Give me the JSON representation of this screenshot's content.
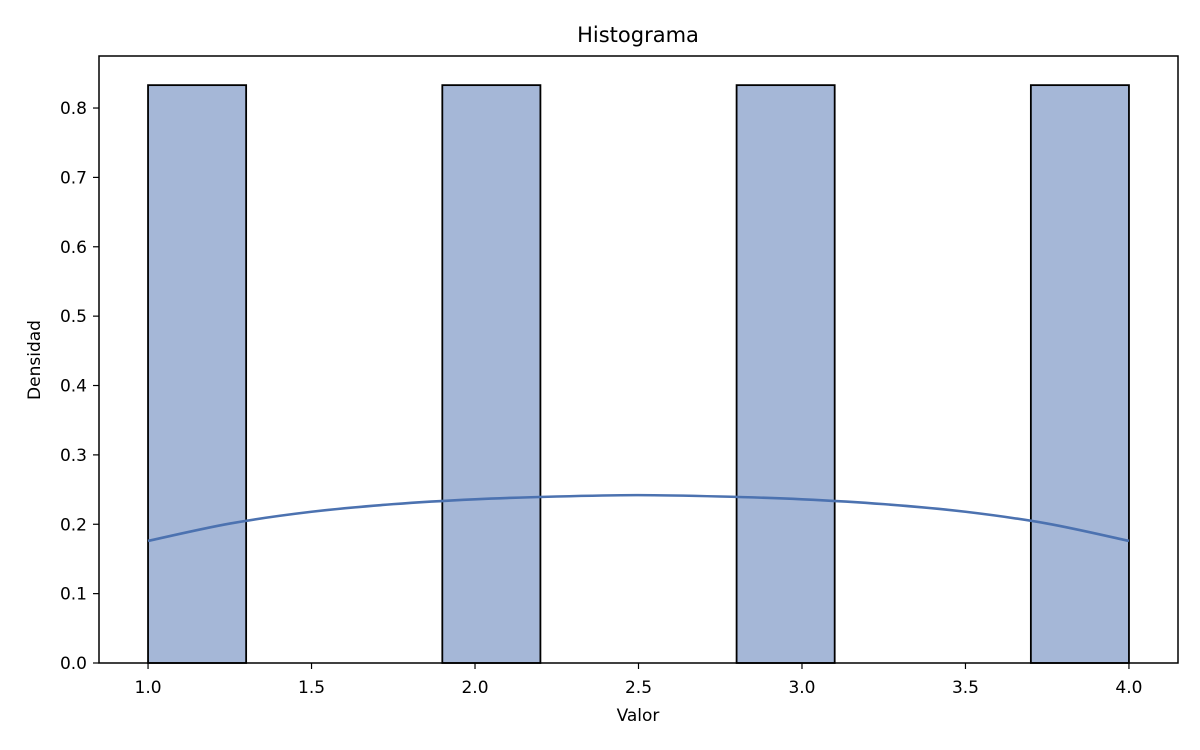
{
  "chart_data": {
    "type": "bar",
    "title": "Histograma",
    "xlabel": "Valor",
    "ylabel": "Densidad",
    "xlim": [
      0.85,
      4.15
    ],
    "ylim": [
      0.0,
      0.875
    ],
    "xticks": [
      1.0,
      1.5,
      2.0,
      2.5,
      3.0,
      3.5,
      4.0
    ],
    "xtick_labels": [
      "1.0",
      "1.5",
      "2.0",
      "2.5",
      "3.0",
      "3.5",
      "4.0"
    ],
    "yticks": [
      0.0,
      0.1,
      0.2,
      0.3,
      0.4,
      0.5,
      0.6,
      0.7,
      0.8
    ],
    "ytick_labels": [
      "0.0",
      "0.1",
      "0.2",
      "0.3",
      "0.4",
      "0.5",
      "0.6",
      "0.7",
      "0.8"
    ],
    "bins": [
      {
        "start": 1.0,
        "end": 1.3,
        "density": 0.833
      },
      {
        "start": 1.9,
        "end": 2.2,
        "density": 0.833
      },
      {
        "start": 2.8,
        "end": 3.1,
        "density": 0.833
      },
      {
        "start": 3.7,
        "end": 4.0,
        "density": 0.833
      }
    ],
    "kde": {
      "x": [
        1.0,
        1.25,
        1.5,
        1.75,
        2.0,
        2.25,
        2.5,
        2.75,
        3.0,
        3.25,
        3.5,
        3.75,
        4.0
      ],
      "y": [
        0.176,
        0.201,
        0.218,
        0.229,
        0.236,
        0.24,
        0.242,
        0.24,
        0.236,
        0.229,
        0.218,
        0.201,
        0.176
      ]
    },
    "colors": {
      "bar_fill": "#a5b7d7",
      "bar_edge": "#000000",
      "kde_line": "#4c72b0"
    },
    "grid": false,
    "legend": "none"
  }
}
